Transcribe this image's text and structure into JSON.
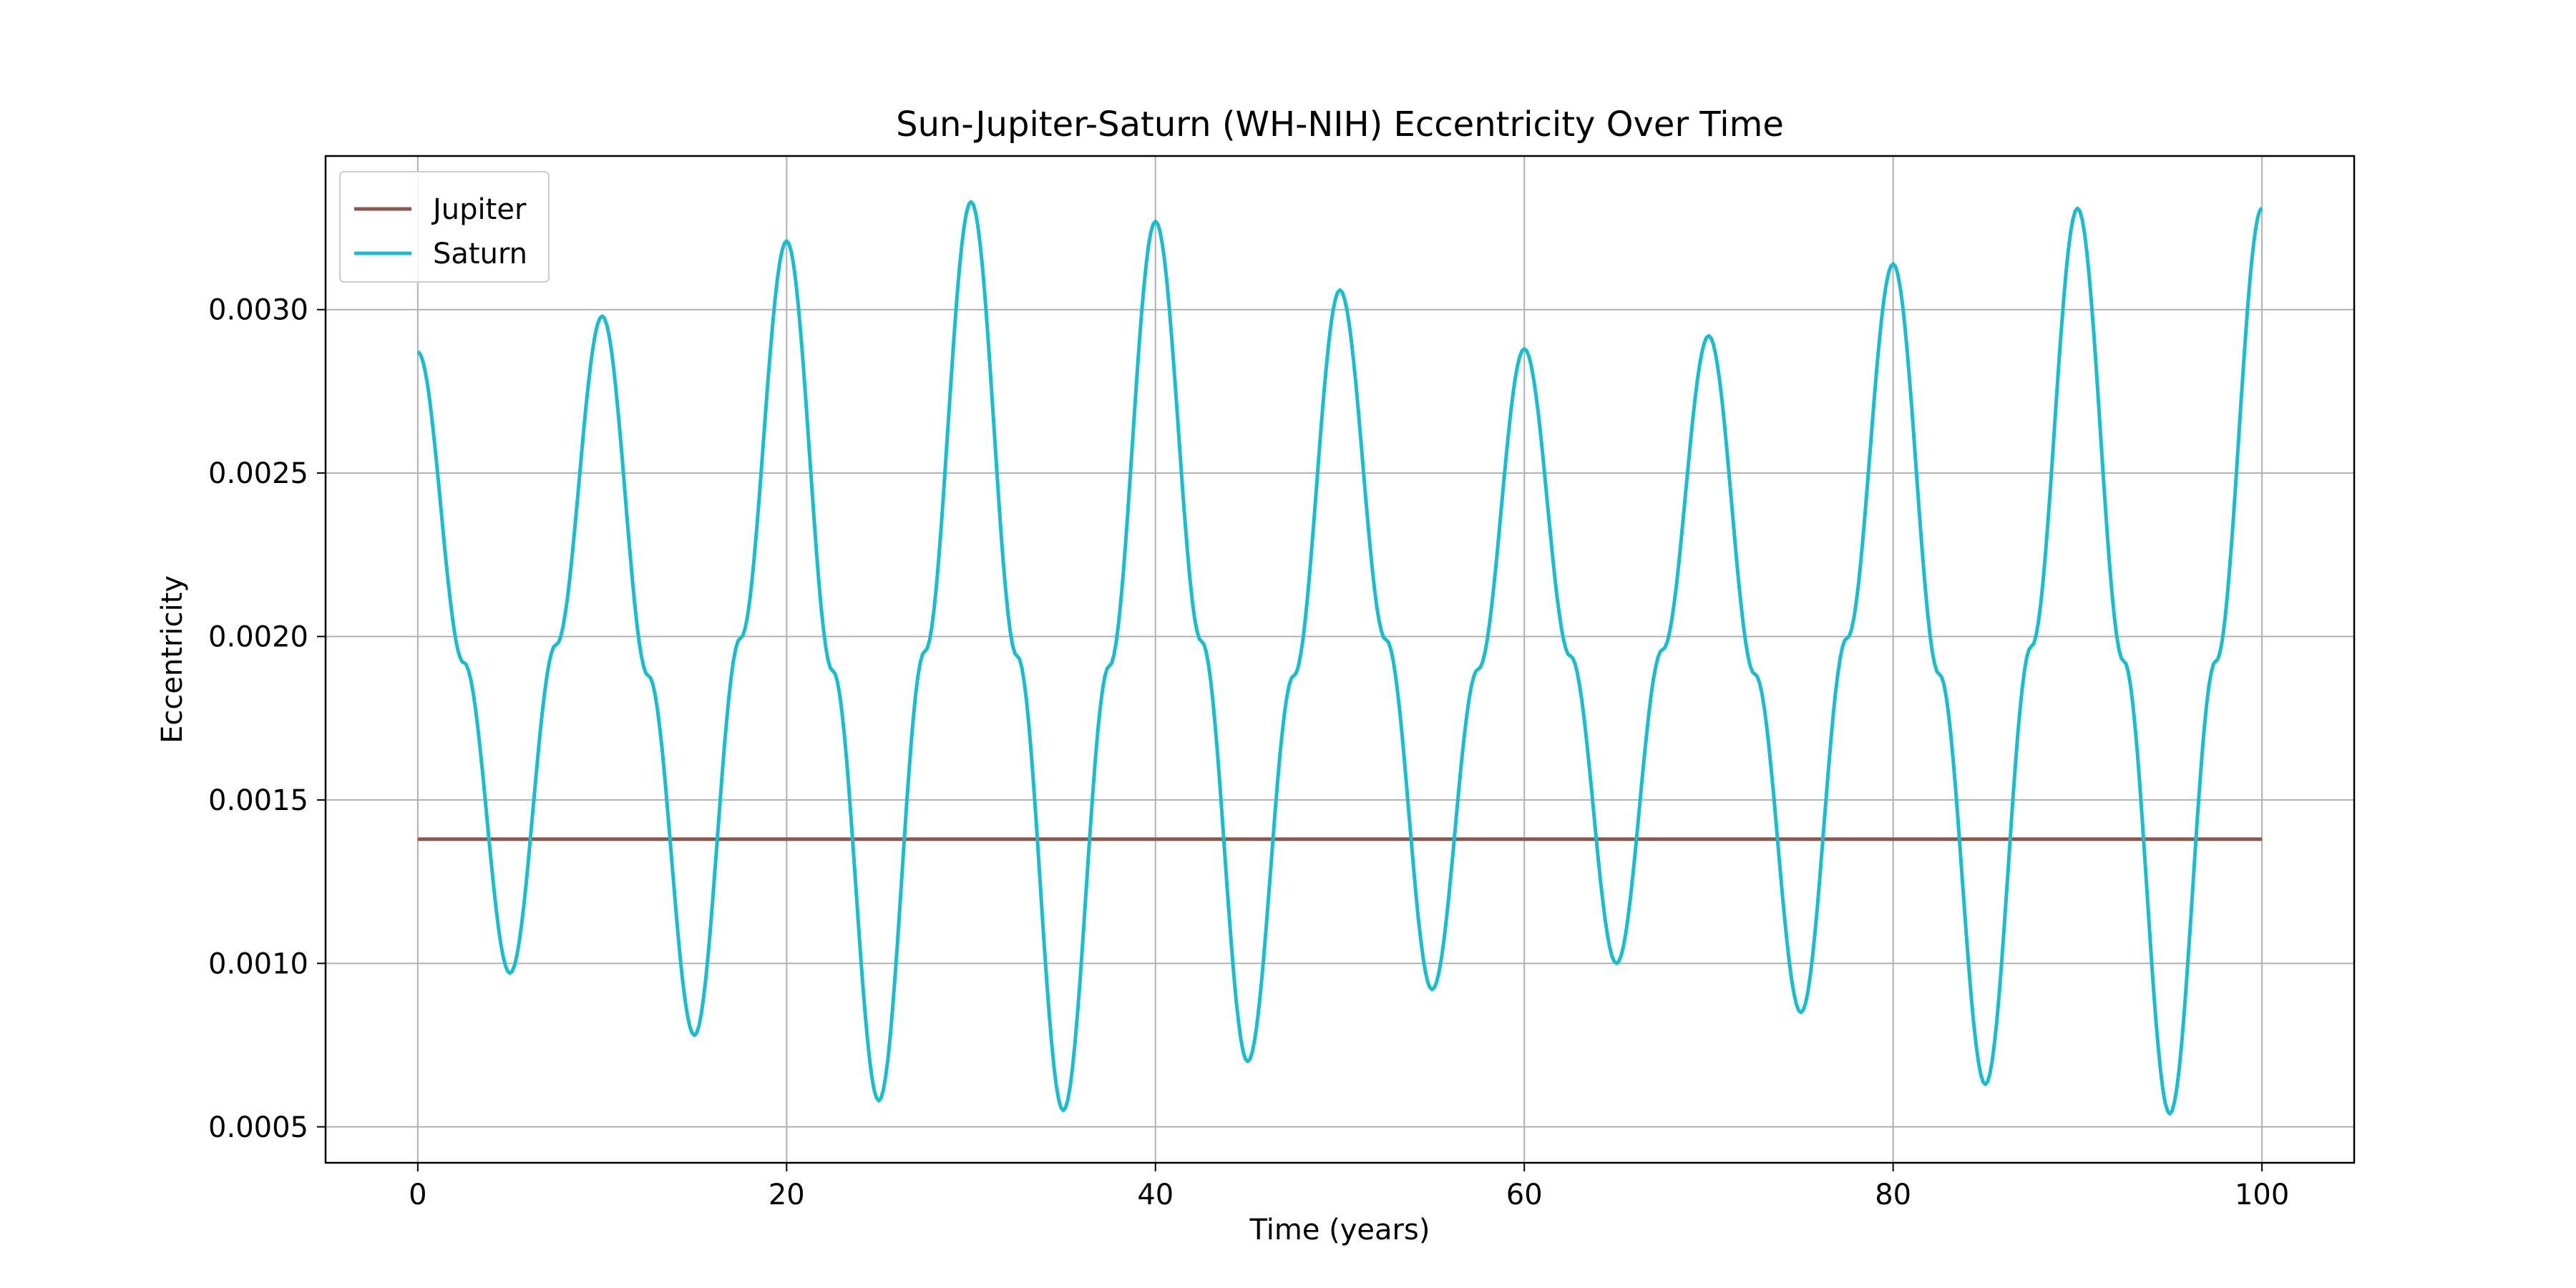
{
  "chart_data": {
    "type": "line",
    "title": "Sun-Jupiter-Saturn (WH-NIH) Eccentricity Over Time",
    "xlabel": "Time (years)",
    "ylabel": "Eccentricity",
    "xlim": [
      -5,
      105
    ],
    "ylim": [
      0.00039,
      0.00347
    ],
    "xticks": [
      0,
      20,
      40,
      60,
      80,
      100
    ],
    "xtick_labels": [
      "0",
      "20",
      "40",
      "60",
      "80",
      "100"
    ],
    "yticks": [
      0.0005,
      0.001,
      0.0015,
      0.002,
      0.0025,
      0.003
    ],
    "ytick_labels": [
      "0.0005",
      "0.0010",
      "0.0015",
      "0.0020",
      "0.0025",
      "0.0030"
    ],
    "grid": true,
    "legend_position": "top-left",
    "series": [
      {
        "name": "Jupiter",
        "color": "#8c564b",
        "x": [
          0,
          100
        ],
        "y": [
          0.00138,
          0.00138
        ]
      },
      {
        "name": "Saturn",
        "color": "#17becf",
        "x": [
          0,
          5,
          10,
          15,
          20,
          25,
          30,
          35,
          40,
          45,
          50,
          55,
          60,
          65,
          70,
          75,
          80,
          85,
          90,
          95,
          100
        ],
        "y": [
          0.00287,
          0.00097,
          0.00298,
          0.00078,
          0.00321,
          0.00058,
          0.00333,
          0.00055,
          0.00327,
          0.0007,
          0.00306,
          0.00092,
          0.00288,
          0.001,
          0.00292,
          0.00085,
          0.00314,
          0.00063,
          0.00331,
          0.00054,
          0.00331
        ]
      }
    ]
  }
}
